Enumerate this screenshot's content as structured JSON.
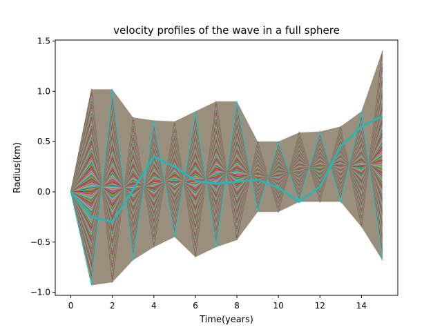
{
  "chart_data": {
    "type": "line",
    "title": "velocity profiles of the wave in a full sphere",
    "xlabel": "Time(years)",
    "ylabel": "Radius(km)",
    "xlim": [
      -0.75,
      15.75
    ],
    "ylim": [
      -1.03,
      1.51
    ],
    "x": [
      0,
      1,
      2,
      3,
      4,
      5,
      6,
      7,
      8,
      9,
      10,
      11,
      12,
      13,
      14,
      15
    ],
    "xticks": [
      0,
      2,
      4,
      6,
      8,
      10,
      12,
      14
    ],
    "yticks": [
      -1.0,
      -0.5,
      0.0,
      0.5,
      1.0,
      1.5
    ],
    "xtick_labels": [
      "0",
      "2",
      "4",
      "6",
      "8",
      "10",
      "12",
      "14"
    ],
    "ytick_labels": [
      "−1.0",
      "−0.5",
      "0.0",
      "0.5",
      "1.0",
      "1.5"
    ],
    "grid": false,
    "legend": "none",
    "upper_envelope": [
      0,
      1.02,
      1.02,
      0.74,
      0.71,
      0.7,
      0.8,
      0.9,
      0.9,
      0.5,
      0.5,
      0.59,
      0.6,
      0.65,
      0.8,
      1.4
    ],
    "lower_envelope": [
      0,
      -0.93,
      -0.9,
      -0.68,
      -0.55,
      -0.45,
      -0.65,
      -0.55,
      -0.48,
      -0.2,
      -0.2,
      -0.1,
      -0.1,
      -0.1,
      -0.35,
      -0.68
    ],
    "highlight_series": [
      0,
      -0.25,
      -0.3,
      0.02,
      0.35,
      0.25,
      0.11,
      0.08,
      0.1,
      0.12,
      0.04,
      -0.1,
      0.05,
      0.45,
      0.65,
      0.75
    ],
    "highlight_color": "#2ab5b5",
    "band_colors": [
      "#1f77b4",
      "#ff7f0e",
      "#2ca02c",
      "#d62728",
      "#9467bd",
      "#8c564b",
      "#e377c2",
      "#7f7f7f",
      "#bcbd22",
      "#17becf"
    ],
    "band_count": 160
  }
}
